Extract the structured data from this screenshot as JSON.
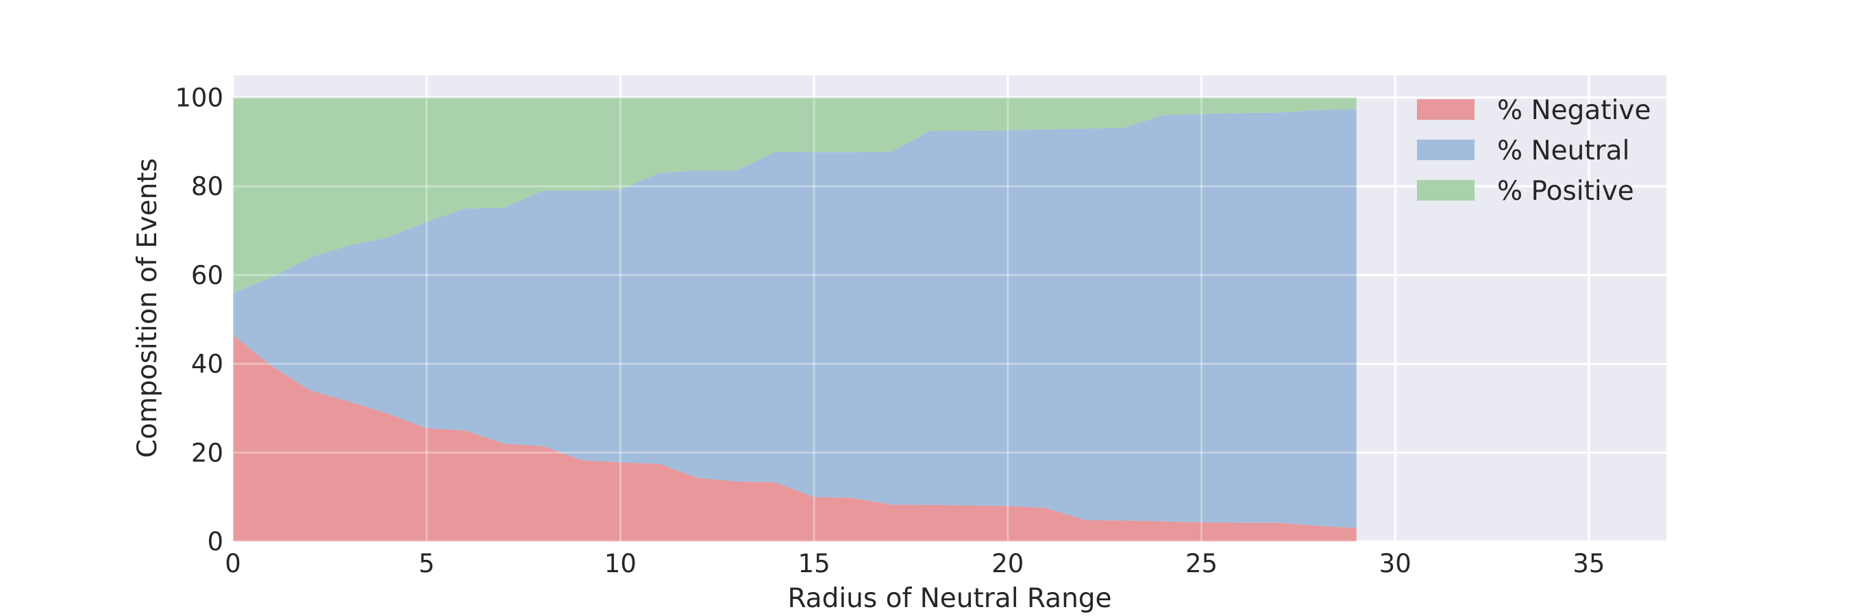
{
  "chart_data": {
    "type": "area",
    "stacked": true,
    "xlabel": "Radius of Neutral Range",
    "ylabel": "Composition of Events",
    "xlim": [
      0,
      37
    ],
    "ylim": [
      0,
      105
    ],
    "x_ticks": [
      0,
      5,
      10,
      15,
      20,
      25,
      30,
      35
    ],
    "y_ticks": [
      0,
      20,
      40,
      60,
      80,
      100
    ],
    "grid": true,
    "legend_position": "top-right",
    "x": [
      0,
      1,
      2,
      3,
      4,
      5,
      6,
      7,
      8,
      9,
      10,
      11,
      12,
      13,
      14,
      15,
      16,
      17,
      18,
      19,
      20,
      21,
      22,
      23,
      24,
      25,
      26,
      27,
      28,
      29
    ],
    "series": [
      {
        "name": "% Negative",
        "color": "#e8979b",
        "values": [
          46.5,
          39.5,
          34,
          31.5,
          28.8,
          25.5,
          25,
          22,
          21.5,
          18.3,
          17.8,
          17.5,
          14.3,
          13.5,
          13.3,
          10,
          9.8,
          8.3,
          8.2,
          8.1,
          8,
          7.5,
          4.8,
          4.7,
          4.5,
          4.3,
          4.2,
          4.2,
          3.5,
          3
        ]
      },
      {
        "name": "% Neutral",
        "color": "#a2bddb",
        "values": [
          9.5,
          20,
          30,
          35.2,
          39.7,
          46.5,
          50,
          53.2,
          57.5,
          60.7,
          61.4,
          65.5,
          69.3,
          70,
          74.5,
          77.7,
          77.9,
          79.5,
          84.3,
          84.4,
          84.6,
          85.3,
          88.2,
          88.5,
          91.5,
          92,
          92.3,
          92.4,
          93.7,
          94.4
        ]
      },
      {
        "name": "% Positive",
        "color": "#a9d2ab",
        "values": [
          44,
          40.5,
          36,
          33.3,
          31.5,
          28,
          25,
          24.8,
          21,
          21,
          20.8,
          17,
          16.4,
          16.5,
          12.2,
          12.3,
          12.3,
          12.2,
          7.5,
          7.5,
          7.4,
          7.2,
          7,
          6.8,
          4,
          3.7,
          3.5,
          3.4,
          2.8,
          2.6
        ]
      }
    ]
  }
}
